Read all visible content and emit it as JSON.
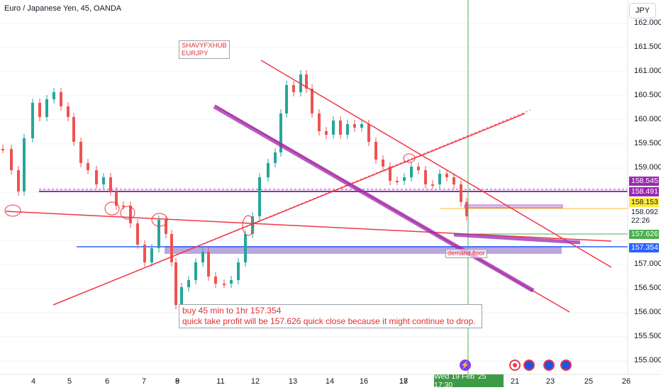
{
  "header": {
    "title": "Euro / Japanese Yen, 45, OANDA",
    "currency_button": "JPY"
  },
  "notes": {
    "signature_line1": "SHAVYFXHUB",
    "signature_line2": "EURJPY",
    "trade_line1": "buy 45 min to 1hr 157.354",
    "trade_line2": "quick take profit will be 157.626   quick close because it might continue to drop.",
    "demand": "demand floor"
  },
  "price_axis": {
    "ticks": [
      "162.000",
      "161.500",
      "161.000",
      "160.500",
      "160.000",
      "159.500",
      "159.000",
      "157.000",
      "156.500",
      "156.000",
      "155.500",
      "155.000"
    ]
  },
  "price_badges": [
    {
      "label": "158.545",
      "bg": "#9c27b0",
      "fg": "#ffffff"
    },
    {
      "label": "158.491",
      "bg": "#9c27b0",
      "fg": "#ffffff"
    },
    {
      "label": "158.153",
      "bg": "#ffeb3b",
      "fg": "#131722"
    },
    {
      "label": "158.092",
      "bg": "#ffffff",
      "fg": "#131722"
    },
    {
      "label": "22:26",
      "bg": "#ffffff",
      "fg": "#131722"
    },
    {
      "label": "157.626",
      "bg": "#4caf50",
      "fg": "#ffffff"
    },
    {
      "label": "157.354",
      "bg": "#2962ff",
      "fg": "#ffffff"
    }
  ],
  "time_axis": {
    "ticks": [
      "4",
      "5",
      "6",
      "7",
      "8",
      "9",
      "11",
      "12",
      "13",
      "14",
      "16",
      "17",
      "18",
      "21",
      "23",
      "25",
      "26"
    ],
    "current_label": "Wed 19 Feb '25   17:30"
  },
  "events": [
    "lightning-event-icon",
    "flag-event-icon",
    "globe-event-icon",
    "globe-event-icon",
    "globe-event-icon"
  ],
  "colors": {
    "up": "#26a69a",
    "down": "#ef5350",
    "trend_red": "#f23645",
    "purple": "#9c27b0",
    "blue": "#2962ff",
    "green_line": "#4caf50"
  }
}
